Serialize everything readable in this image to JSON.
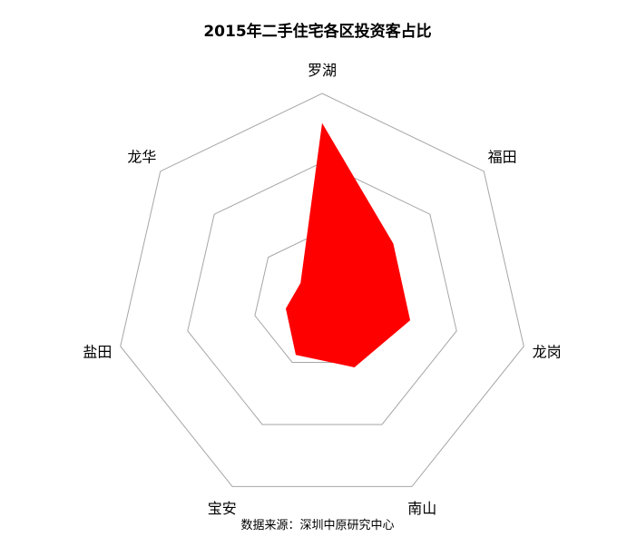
{
  "chart_data": {
    "type": "radar",
    "title": "2015年二手住宅各区投资客占比",
    "source": "数据来源：深圳中原研究中心",
    "categories": [
      "罗湖",
      "福田",
      "龙岗",
      "南山",
      "宝安",
      "盐田",
      "龙华"
    ],
    "values": [
      25.7,
      13.2,
      13.1,
      10.8,
      8.8,
      5.4,
      4.0
    ],
    "rlim": [
      0,
      30
    ],
    "rings": 3,
    "grid": true,
    "legend": "none",
    "fill_color": "#ff0000",
    "grid_color": "#a6a6a6"
  }
}
